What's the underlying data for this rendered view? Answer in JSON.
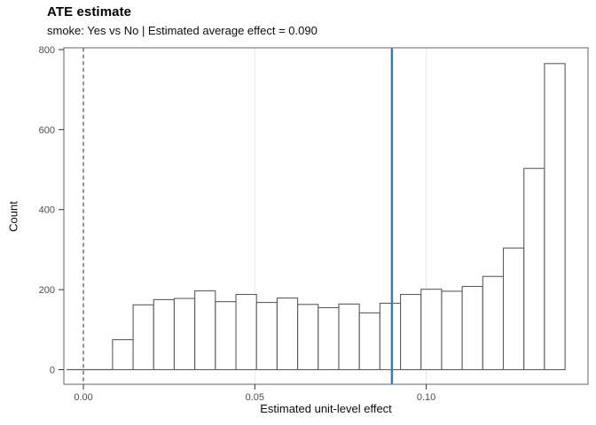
{
  "chart_data": {
    "type": "bar",
    "subtype": "histogram",
    "title": "ATE estimate",
    "subtitle": "smoke: Yes vs No | Estimated average effect = 0.090",
    "xlabel": "Estimated unit-level effect",
    "ylabel": "Count",
    "xlim": [
      -0.0057,
      0.1472
    ],
    "ylim": [
      -36.5,
      804.4
    ],
    "x_ticks": {
      "values": [
        0.0,
        0.05,
        0.1
      ],
      "labels": [
        "0.00",
        "0.05",
        "0.10"
      ]
    },
    "y_ticks": {
      "values": [
        0,
        200,
        400,
        600,
        800
      ],
      "labels": [
        "0",
        "200",
        "400",
        "600",
        "800"
      ]
    },
    "grid": "vertical-major-only",
    "legend": "none",
    "histogram": {
      "bin_start": 0.0085,
      "bin_width": 0.006,
      "counts": [
        75,
        162,
        175,
        178,
        197,
        170,
        188,
        168,
        179,
        163,
        155,
        164,
        142,
        166,
        188,
        201,
        196,
        208,
        233,
        304,
        503,
        765
      ]
    },
    "baseline_segment": {
      "from_x": -0.0049,
      "to_x": 0.0085,
      "y": 0
    },
    "reference_lines": [
      {
        "x": 0.0,
        "style": "dashed",
        "color": "#4d4d4d",
        "width": 1.2,
        "name": "zero-dashed-line"
      },
      {
        "x": 0.09,
        "style": "solid",
        "color": "#2d7dbb",
        "width": 2.4,
        "name": "ate-blue-line"
      }
    ],
    "estimated_average_effect": 0.09,
    "colors": {
      "bar_fill": "#ffffff",
      "bar_stroke": "#5c5c5c",
      "panel_border": "#7e7e7e",
      "gridline": "#e9e9e9",
      "tick_mark": "#333333",
      "tick_label": "#4d4d4d",
      "text": "#000000",
      "background": "#ffffff"
    }
  }
}
